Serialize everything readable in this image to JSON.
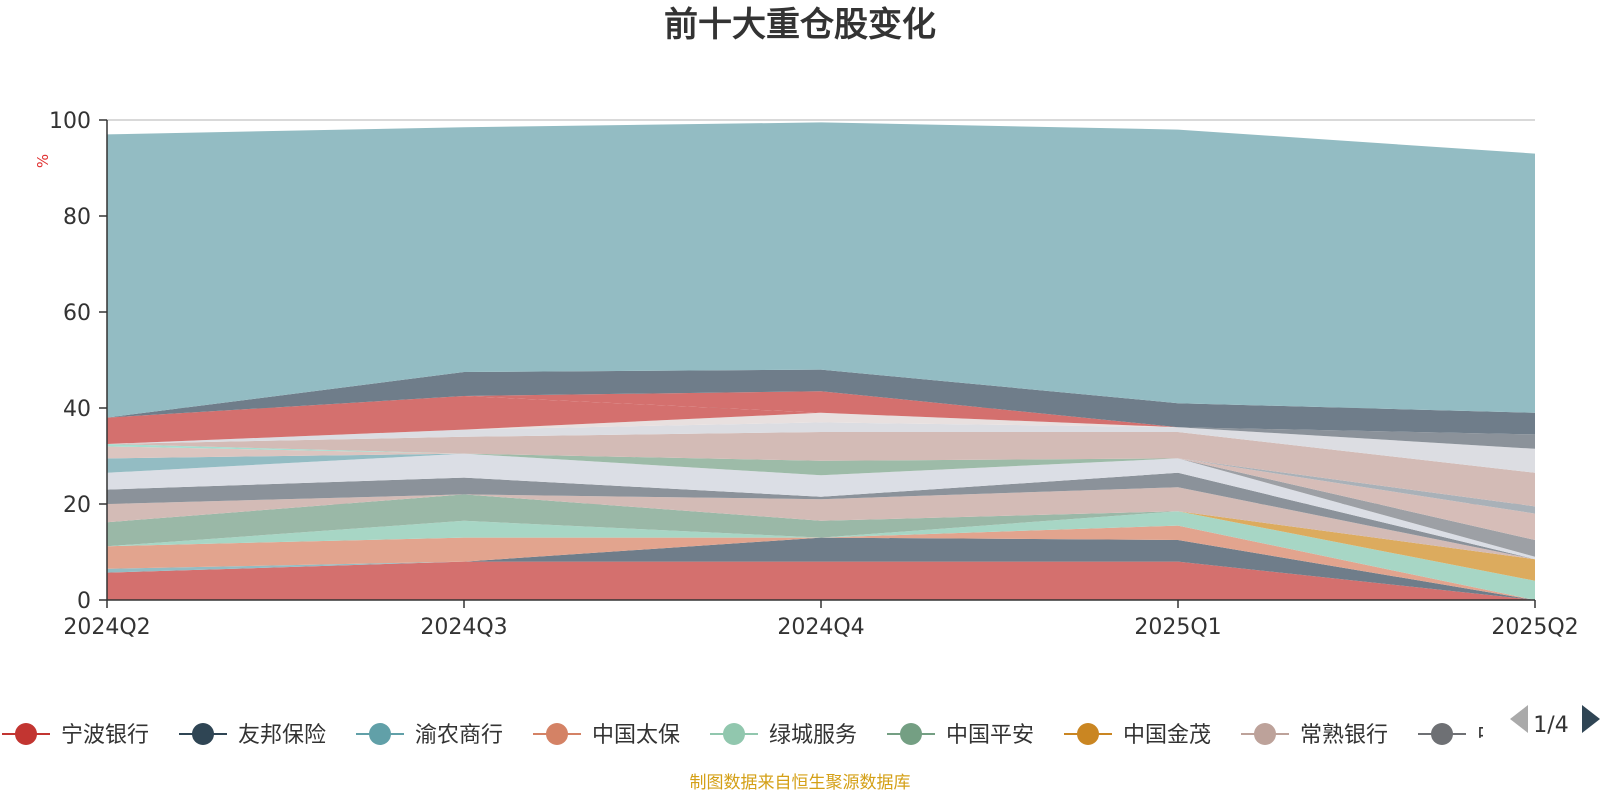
{
  "chart_data": {
    "type": "area",
    "stacked": true,
    "title": "前十大重仓股变化",
    "ylabel": "%",
    "categories": [
      "2024Q2",
      "2024Q3",
      "2024Q4",
      "2025Q1",
      "2025Q2"
    ],
    "ylim": [
      0,
      100
    ],
    "yticks": [
      0,
      20,
      40,
      60,
      80,
      100
    ],
    "grid": true,
    "series": [
      {
        "name": "宁波银行",
        "values": [
          5.7,
          8.0,
          8.0,
          8.0,
          0.0
        ]
      },
      {
        "name": "友邦保险",
        "values": [
          0.0,
          0.0,
          5.0,
          4.5,
          0.0
        ]
      },
      {
        "name": "渝农商行",
        "values": [
          0.8,
          0.0,
          0.0,
          0.0,
          0.0
        ]
      },
      {
        "name": "中国太保",
        "values": [
          4.7,
          5.0,
          0.0,
          3.0,
          0.0
        ]
      },
      {
        "name": "绿城服务",
        "values": [
          0.0,
          3.5,
          0.0,
          3.0,
          4.0
        ]
      },
      {
        "name": "中国平安",
        "values": [
          5.0,
          5.5,
          3.5,
          0.0,
          0.0
        ]
      },
      {
        "name": "中国金茂",
        "values": [
          0.0,
          0.0,
          0.0,
          0.0,
          4.5
        ]
      },
      {
        "name": "常熟银行",
        "values": [
          3.8,
          0.0,
          4.5,
          5.0,
          0.0
        ]
      },
      {
        "name": "",
        "values": [
          3.0,
          3.5,
          0.5,
          3.0,
          0.0
        ]
      },
      {
        "name": "",
        "values": [
          3.5,
          5.0,
          4.5,
          3.0,
          0.5
        ]
      },
      {
        "name": "",
        "values": [
          0.0,
          0.0,
          0.0,
          0.0,
          3.5
        ]
      },
      {
        "name": "",
        "values": [
          0.0,
          0.0,
          0.0,
          0.0,
          5.5
        ]
      },
      {
        "name": "",
        "values": [
          0.0,
          0.0,
          0.0,
          0.0,
          1.5
        ]
      },
      {
        "name": "",
        "values": [
          0.0,
          0.0,
          3.0,
          0.0,
          0.0
        ]
      },
      {
        "name": "",
        "values": [
          3.0,
          0.0,
          0.0,
          0.0,
          0.0
        ]
      },
      {
        "name": "",
        "values": [
          2.5,
          0.0,
          0.0,
          0.0,
          0.0
        ]
      },
      {
        "name": "",
        "values": [
          0.5,
          0.0,
          0.0,
          0.0,
          0.0
        ]
      },
      {
        "name": "",
        "values": [
          0.0,
          3.5,
          6.0,
          5.5,
          7.0
        ]
      },
      {
        "name": "",
        "values": [
          0.0,
          1.5,
          2.0,
          1.0,
          5.0
        ]
      },
      {
        "name": "",
        "values": [
          0.0,
          0.0,
          2.0,
          0.0,
          0.0
        ]
      },
      {
        "name": "",
        "values": [
          0.0,
          0.0,
          0.0,
          0.0,
          3.0
        ]
      },
      {
        "name": "",
        "values": [
          5.5,
          7.0,
          0.0,
          0.0,
          0.0
        ]
      },
      {
        "name": "",
        "values": [
          0.0,
          0.0,
          4.5,
          0.0,
          0.0
        ]
      },
      {
        "name": "",
        "values": [
          0.0,
          5.0,
          4.5,
          5.0,
          4.5
        ]
      },
      {
        "name": "",
        "values": [
          59.0,
          51.0,
          51.5,
          57.0,
          54.0
        ]
      }
    ],
    "legend_position": "bottom",
    "legend_page": "1/4"
  },
  "colors": {
    "series_fill": [
      "#d4706e",
      "#6f7d8a",
      "#93bcc3",
      "#e2a48e",
      "#a7d6c5",
      "#9ab8a7",
      "#dcab5e",
      "#d3bbb6",
      "#8b929a",
      "#dbdee5",
      "#9da0a5",
      "#d6bdb8",
      "#a9b1b8",
      "#9dbba8",
      "#93bcc3",
      "#dcc5c0",
      "#a5ded0",
      "#d3bbb6",
      "#dcdde2",
      "#e8e0df",
      "#8b929a",
      "#d4706e",
      "#d4706e",
      "#6f7d8a",
      "#93bcc3"
    ],
    "legend_markers": [
      "#c23531",
      "#2f4554",
      "#61a0a8",
      "#d48265",
      "#91c7ae",
      "#749f83",
      "#ca8622",
      "#bda29a",
      "#6e7074"
    ],
    "footer": "#d4a017",
    "ylabel": "#e03030",
    "title": "#333333",
    "axis_text": "#333333"
  },
  "legend": {
    "items": [
      "宁波银行",
      "友邦保险",
      "渝农商行",
      "中国太保",
      "绿城服务",
      "中国平安",
      "中国金茂",
      "常熟银行",
      "中国"
    ],
    "page": "1/4",
    "icons": {
      "prev": "triangle-left-icon",
      "next": "triangle-right-icon"
    }
  },
  "footer": {
    "source": "制图数据来自恒生聚源数据库"
  }
}
